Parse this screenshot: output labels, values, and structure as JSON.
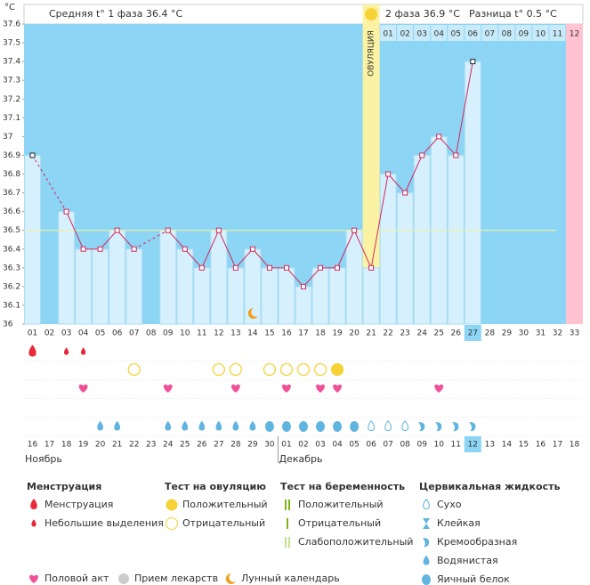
{
  "chart_data": {
    "type": "line",
    "y_label": "°C",
    "phase1_text": "Средняя t° 1 фаза 36.4 °C",
    "phase2_text": "2 фаза 36.9 °C",
    "difference_text": "Разница t° 0.5 °C",
    "ovulation_label": "ОВУЛЯЦИЯ",
    "ovulation_day": "21",
    "current_day": "27",
    "categories": [
      "01",
      "02",
      "03",
      "04",
      "05",
      "06",
      "07",
      "08",
      "09",
      "10",
      "11",
      "12",
      "13",
      "14",
      "15",
      "16",
      "17",
      "18",
      "19",
      "20",
      "21",
      "22",
      "23",
      "24",
      "25",
      "26",
      "27",
      "28",
      "29",
      "30",
      "31",
      "32",
      "33"
    ],
    "series": [
      {
        "name": "Температура",
        "color": "#d2285c",
        "values": [
          36.9,
          null,
          36.6,
          36.4,
          36.4,
          36.5,
          36.4,
          null,
          36.5,
          36.4,
          36.3,
          36.5,
          36.3,
          36.4,
          36.3,
          36.3,
          36.2,
          36.3,
          36.3,
          36.5,
          36.3,
          36.8,
          36.7,
          36.9,
          37.0,
          36.9,
          37.4,
          null,
          null,
          null,
          null,
          null,
          null
        ]
      }
    ],
    "coverline": 36.5,
    "ylim": [
      36,
      37.6
    ],
    "yticks": [
      36,
      36.1,
      36.2,
      36.3,
      36.4,
      36.5,
      36.6,
      36.7,
      36.8,
      36.9,
      37,
      37.1,
      37.2,
      37.3,
      37.4,
      37.5,
      37.6
    ],
    "luteal_days": [
      "01",
      "02",
      "03",
      "04",
      "05",
      "06",
      "07",
      "08",
      "09",
      "10",
      "11",
      "12"
    ],
    "menstruation": {
      "01": "heavy",
      "03": "light",
      "04": "light"
    },
    "ovulation_test": {
      "07": "negative",
      "12": "negative",
      "13": "negative",
      "15": "negative",
      "16": "negative",
      "17": "negative",
      "18": "negative",
      "19": "positive"
    },
    "intercourse": [
      "04",
      "09",
      "13",
      "16",
      "18",
      "19",
      "25"
    ],
    "cervical_fluid": {
      "05": "watery",
      "06": "watery",
      "09": "watery",
      "10": "watery",
      "11": "watery",
      "12": "watery",
      "13": "watery",
      "14": "watery",
      "15": "eggwhite",
      "16": "eggwhite",
      "17": "eggwhite",
      "18": "eggwhite",
      "19": "eggwhite",
      "20": "eggwhite",
      "21": "dry",
      "22": "dry",
      "23": "dry",
      "24": "creamy",
      "25": "creamy",
      "26": "creamy",
      "27": "creamy"
    },
    "moon_day": "14",
    "dates": [
      "16",
      "17",
      "18",
      "19",
      "20",
      "21",
      "22",
      "23",
      "24",
      "25",
      "26",
      "27",
      "28",
      "29",
      "30",
      "01",
      "02",
      "03",
      "04",
      "05",
      "06",
      "07",
      "08",
      "09",
      "10",
      "11",
      "12",
      "13",
      "14",
      "15",
      "16",
      "17",
      "18"
    ],
    "weekend_index": [
      4,
      5,
      11,
      12,
      18,
      19,
      25,
      32
    ],
    "months": [
      {
        "name": "Ноябрь",
        "from": 0
      },
      {
        "name": "Декабрь",
        "from": 15
      }
    ],
    "legend": [
      {
        "title": "Менструация",
        "items": [
          "Менструация",
          "Небольшие выделения"
        ]
      },
      {
        "title": "Тест на овуляцию",
        "items": [
          "Положительный",
          "Отрицательный"
        ]
      },
      {
        "title": "Тест на беременность",
        "items": [
          "Положительный",
          "Отрицательный",
          "Слабоположительный"
        ]
      },
      {
        "title": "Цервикальная жидкость",
        "items": [
          "Сухо",
          "Клейкая",
          "Кремообразная",
          "Водянистая",
          "Яичный белок"
        ]
      }
    ],
    "extra_legend": [
      "Половой акт",
      "Прием лекарств",
      "Лунный календарь"
    ]
  }
}
